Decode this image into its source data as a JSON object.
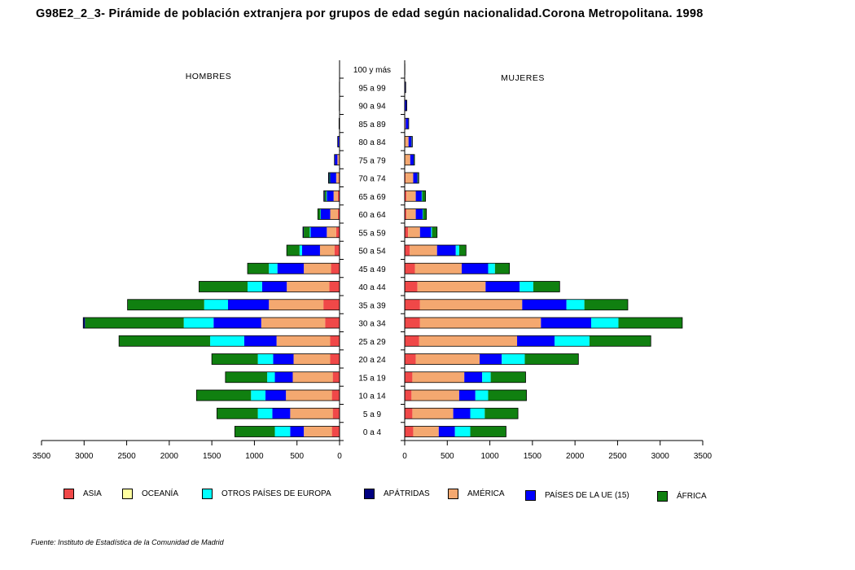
{
  "title": "G98E2_2_3- Pirámide de población extranjera por grupos de edad según nacionalidad.Corona Metropolitana.  1998",
  "source": "Fuente: Instituto de Estadística de la Comunidad de Madrid",
  "chart_data": {
    "type": "bar",
    "orientation": "horizontal-population-pyramid",
    "left_label": "HOMBRES",
    "right_label": "MUJERES",
    "xlim": [
      0,
      3500
    ],
    "x_ticks": [
      "3500",
      "3000",
      "2500",
      "2000",
      "1500",
      "1000",
      "500",
      "0"
    ],
    "x_ticks_right": [
      "0",
      "500",
      "1000",
      "1500",
      "2000",
      "2500",
      "3000",
      "3500"
    ],
    "categories": [
      "0 a 4",
      "5 a 9",
      "10 a 14",
      "15 a 19",
      "20 a 24",
      "25 a 29",
      "30 a 34",
      "35 a 39",
      "40 a  44",
      "45 a 49",
      "50 a 54",
      "55 a 59",
      "60 a 64",
      "65 a 69",
      "70 a 74",
      "75 a 79",
      "80 a 84",
      "85 a 89",
      "90 a 94",
      "95 a 99",
      "100 y más"
    ],
    "series_order": [
      "ASIA",
      "AMÉRICA",
      "PAÍSES DE LA UE (15)",
      "OTROS PAÍSES DE EUROPA",
      "ÁFRICA",
      "APÁTRIDAS",
      "OCEANÍA"
    ],
    "colors": {
      "ASIA": "#f04848",
      "OCEANÍA": "#ffffa0",
      "OTROS PAÍSES DE EUROPA": "#00ffff",
      "APÁTRIDAS": "#000080",
      "AMÉRICA": "#f4a870",
      "PAÍSES DE LA UE (15)": "#0000ff",
      "ÁFRICA": "#108010"
    },
    "hombres": [
      {
        "name": "ASIA",
        "values": [
          90,
          80,
          90,
          80,
          110,
          110,
          170,
          190,
          120,
          100,
          60,
          40,
          20,
          20,
          10,
          5,
          2,
          1,
          0,
          0,
          0
        ]
      },
      {
        "name": "AMÉRICA",
        "values": [
          330,
          500,
          540,
          470,
          430,
          630,
          750,
          640,
          500,
          320,
          170,
          110,
          90,
          50,
          30,
          20,
          5,
          2,
          1,
          0,
          0
        ]
      },
      {
        "name": "PAÍSES DE LA UE (15)",
        "values": [
          160,
          210,
          240,
          210,
          240,
          380,
          560,
          480,
          290,
          310,
          210,
          190,
          110,
          80,
          70,
          30,
          15,
          3,
          2,
          2,
          0
        ]
      },
      {
        "name": "OTROS PAÍSES DE EUROPA",
        "values": [
          180,
          170,
          170,
          90,
          180,
          400,
          350,
          280,
          170,
          100,
          30,
          10,
          5,
          5,
          0,
          0,
          0,
          0,
          0,
          0,
          0
        ]
      },
      {
        "name": "ÁFRICA",
        "values": [
          470,
          480,
          640,
          490,
          540,
          1070,
          1160,
          900,
          570,
          250,
          150,
          70,
          30,
          20,
          10,
          0,
          0,
          0,
          0,
          0,
          0
        ]
      },
      {
        "name": "APÁTRIDAS",
        "values": [
          0,
          0,
          0,
          0,
          0,
          0,
          20,
          0,
          0,
          0,
          0,
          10,
          0,
          10,
          10,
          5,
          0,
          0,
          0,
          0,
          0
        ]
      },
      {
        "name": "OCEANÍA",
        "values": [
          0,
          0,
          0,
          0,
          0,
          0,
          0,
          0,
          0,
          0,
          0,
          0,
          0,
          0,
          0,
          0,
          0,
          0,
          0,
          0,
          0
        ]
      }
    ],
    "mujeres": [
      {
        "name": "ASIA",
        "values": [
          100,
          90,
          80,
          90,
          130,
          170,
          180,
          180,
          150,
          120,
          60,
          40,
          20,
          20,
          10,
          5,
          5,
          2,
          0,
          0,
          0
        ]
      },
      {
        "name": "AMÉRICA",
        "values": [
          300,
          480,
          560,
          610,
          750,
          1150,
          1420,
          1200,
          800,
          550,
          320,
          140,
          110,
          110,
          90,
          60,
          40,
          10,
          5,
          2,
          0
        ]
      },
      {
        "name": "PAÍSES DE LA UE (15)",
        "values": [
          190,
          200,
          190,
          210,
          260,
          440,
          590,
          520,
          400,
          310,
          220,
          130,
          80,
          70,
          50,
          40,
          35,
          30,
          10,
          5,
          2
        ]
      },
      {
        "name": "OTROS PAÍSES DE EUROPA",
        "values": [
          180,
          170,
          150,
          100,
          270,
          410,
          320,
          210,
          160,
          80,
          40,
          10,
          5,
          5,
          0,
          0,
          0,
          0,
          0,
          0,
          0
        ]
      },
      {
        "name": "ÁFRICA",
        "values": [
          420,
          390,
          450,
          410,
          630,
          720,
          750,
          510,
          310,
          170,
          80,
          60,
          40,
          40,
          10,
          5,
          5,
          0,
          0,
          0,
          0
        ]
      },
      {
        "name": "APÁTRIDAS",
        "values": [
          0,
          0,
          0,
          0,
          0,
          0,
          0,
          0,
          0,
          0,
          0,
          0,
          0,
          0,
          5,
          5,
          5,
          5,
          10,
          5,
          0
        ]
      },
      {
        "name": "OCEANÍA",
        "values": [
          0,
          0,
          0,
          0,
          0,
          0,
          0,
          0,
          0,
          0,
          0,
          0,
          0,
          0,
          0,
          0,
          0,
          0,
          0,
          0,
          0
        ]
      }
    ],
    "legend": [
      "ASIA",
      "OCEANÍA",
      "OTROS PAÍSES DE EUROPA",
      "APÁTRIDAS",
      "AMÉRICA",
      "PAÍSES DE LA UE (15)",
      "ÁFRICA"
    ],
    "legend_position": "bottom",
    "grid": false
  }
}
